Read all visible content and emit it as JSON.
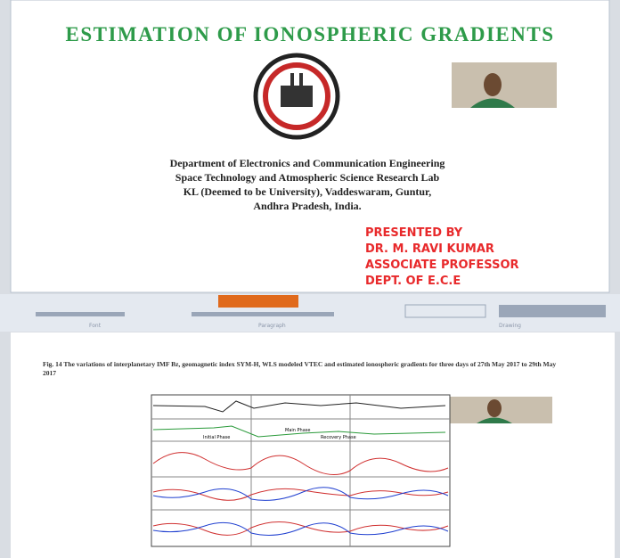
{
  "slide_top": {
    "title": "ESTIMATION OF IONOSPHERIC GRADIENTS",
    "department": [
      "Department of Electronics and Communication Engineering",
      "Space Technology and Atmospheric Science Research Lab",
      "KL (Deemed to be University), Vaddeswaram, Guntur,",
      "Andhra Pradesh, India."
    ],
    "presenter": [
      "PRESENTED BY",
      "DR. M. RAVI KUMAR",
      "ASSOCIATE PROFESSOR",
      "DEPT. OF E.C.E"
    ]
  },
  "ribbon": {
    "groups": [
      "Font",
      "Paragraph",
      "Drawing"
    ]
  },
  "slide_bottom": {
    "caption": "Fig. 14 The variations of interplanetary IMF Bz, geomagnetic index SYM-H, WLS modeled VTEC and estimated ionospheric gradients for three days of 27th May 2017 to 29th May 2017",
    "phases": [
      "Initial Phase",
      "Main Phase",
      "Recovery Phase"
    ]
  }
}
